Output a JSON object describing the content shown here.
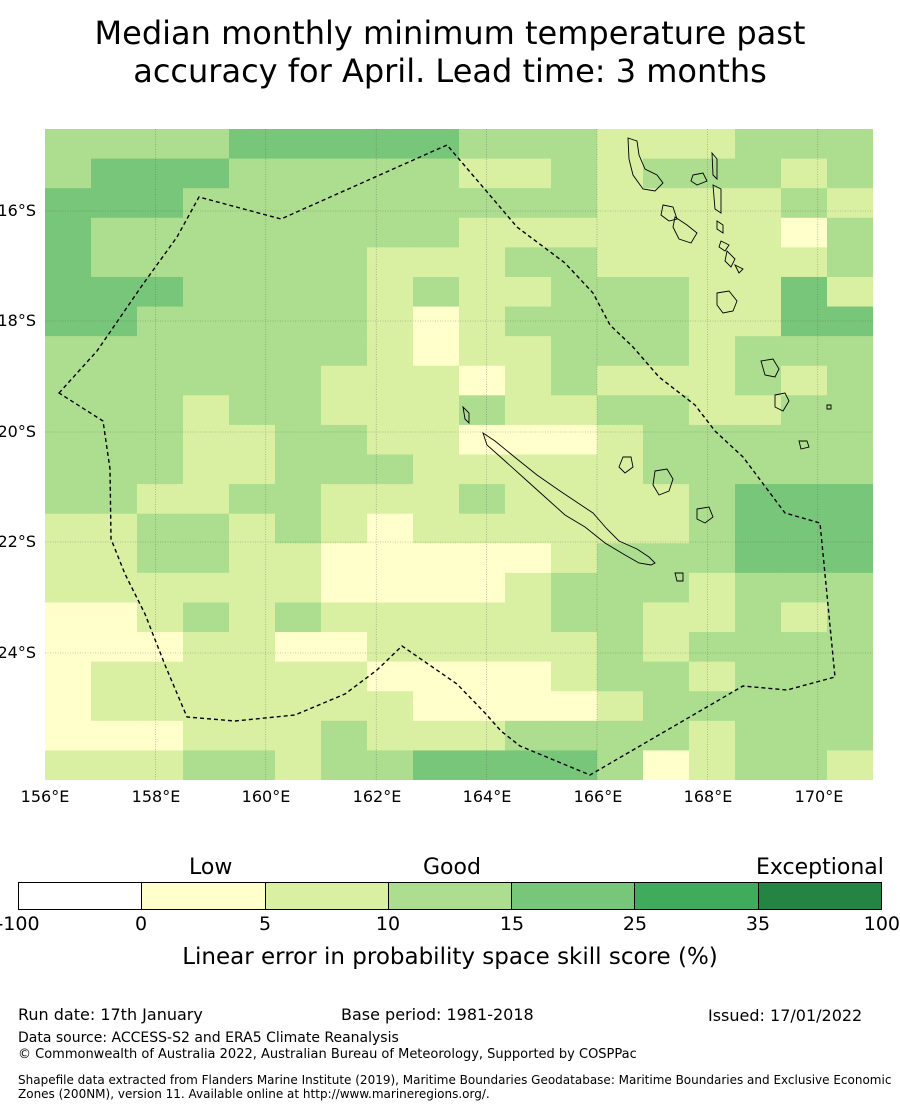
{
  "title_line1": "Median monthly minimum temperature past",
  "title_line2": "accuracy for April. Lead time: 3 months",
  "map": {
    "lat_labels": [
      "16°S",
      "18°S",
      "20°S",
      "22°S",
      "24°S"
    ],
    "lon_labels": [
      "156°E",
      "158°E",
      "160°E",
      "162°E",
      "164°E",
      "166°E",
      "168°E",
      "170°E"
    ],
    "grid_rows": [
      "333344444333222333",
      "344433333223233323",
      "444333333333222232",
      "433333333222222213",
      "433333322233222223",
      "444333323223332242",
      "443333321233332244",
      "333333321223332333",
      "333333222123222323",
      "333233222322332233",
      "333223322111233333",
      "333223332222233333",
      "332233222322223444",
      "223323212222223444",
      "223322111112333444",
      "222222111123332333",
      "112323222223322323",
      "111221122222323333",
      "122222211112332333",
      "122222221111233333",
      "111222322233332333",
      "222332334444312332"
    ]
  },
  "colorbar": {
    "categories": [
      "Low",
      "Good",
      "Exceptional"
    ],
    "ticks": [
      "-100",
      "0",
      "5",
      "10",
      "15",
      "25",
      "35",
      "100"
    ],
    "colors": [
      "#ffffff",
      "#ffffcc",
      "#d9f0a3",
      "#addd8e",
      "#78c679",
      "#41ab5d",
      "#238443"
    ],
    "title": "Linear error in probability space skill score (%)"
  },
  "footer": {
    "run_date": "Run date: 17th January",
    "base_period": "Base period: 1981-2018",
    "issued": "Issued: 17/01/2022",
    "data_source": "Data source: ACCESS-S2 and ERA5 Climate Reanalysis",
    "copyright": "© Commonwealth of Australia 2022, Australian Bureau of Meteorology, Supported by COSPPac",
    "shapefile": "Shapefile data extracted from Flanders Marine Institute (2019), Maritime Boundaries Geodatabase: Maritime Boundaries and Exclusive Economic Zones (200NM), version 11. Available online at http://www.marineregions.org/."
  }
}
